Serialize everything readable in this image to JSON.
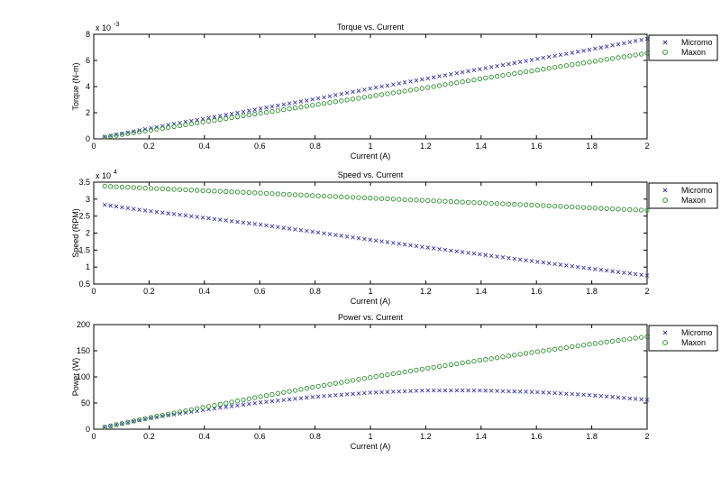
{
  "colors": {
    "micromo": "#3a3aaa",
    "maxon": "#2f8f2f",
    "axes": "#000000",
    "background": "#ffffff"
  },
  "chart_data": [
    {
      "type": "scatter",
      "title": "Torque vs. Current",
      "xlabel": "Current (A)",
      "ylabel": "Torque (N-m)",
      "xlim": [
        0,
        2
      ],
      "ylim": [
        0,
        8
      ],
      "y_exponent": "-3",
      "x_ticks": [
        0,
        0.2,
        0.4,
        0.6,
        0.8,
        1,
        1.2,
        1.4,
        1.6,
        1.8,
        2
      ],
      "x_tick_labels": [
        "0",
        "0.2",
        "0.4",
        "0.6",
        "0.8",
        "1",
        "1.2",
        "1.4",
        "1.6",
        "1.8",
        "2"
      ],
      "y_ticks": [
        0,
        2,
        4,
        6,
        8
      ],
      "y_tick_labels": [
        "0",
        "2",
        "4",
        "6",
        "8"
      ],
      "grid": false,
      "legend_position": "outside-right",
      "series": [
        {
          "name": "Micromo",
          "marker": "x",
          "x": [
            0.04,
            0.2,
            0.4,
            0.6,
            0.8,
            1.0,
            1.2,
            1.4,
            1.6,
            1.8,
            2.0
          ],
          "y": [
            0.15,
            0.8,
            1.55,
            2.3,
            3.05,
            3.85,
            4.6,
            5.35,
            6.1,
            6.85,
            7.65
          ]
        },
        {
          "name": "Maxon",
          "marker": "o",
          "x": [
            0.04,
            0.2,
            0.4,
            0.6,
            0.8,
            1.0,
            1.2,
            1.4,
            1.6,
            1.8,
            2.0
          ],
          "y": [
            0.13,
            0.65,
            1.3,
            1.95,
            2.6,
            3.25,
            3.9,
            4.6,
            5.25,
            5.9,
            6.55
          ]
        }
      ]
    },
    {
      "type": "scatter",
      "title": "Speed vs. Current",
      "xlabel": "Current (A)",
      "ylabel": "Speed (RPM)",
      "xlim": [
        0,
        2
      ],
      "ylim": [
        0.5,
        3.5
      ],
      "y_exponent": "4",
      "x_ticks": [
        0,
        0.2,
        0.4,
        0.6,
        0.8,
        1,
        1.2,
        1.4,
        1.6,
        1.8,
        2
      ],
      "x_tick_labels": [
        "0",
        "0.2",
        "0.4",
        "0.6",
        "0.8",
        "1",
        "1.2",
        "1.4",
        "1.6",
        "1.8",
        "2"
      ],
      "y_ticks": [
        0.5,
        1,
        1.5,
        2,
        2.5,
        3,
        3.5
      ],
      "y_tick_labels": [
        "0.5",
        "1",
        "1.5",
        "2",
        "2.5",
        "3",
        "3.5"
      ],
      "grid": false,
      "legend_position": "outside-right",
      "series": [
        {
          "name": "Micromo",
          "marker": "x",
          "x": [
            0.04,
            0.2,
            0.4,
            0.6,
            0.8,
            1.0,
            1.2,
            1.4,
            1.6,
            1.8,
            2.0
          ],
          "y": [
            2.83,
            2.65,
            2.45,
            2.25,
            2.03,
            1.8,
            1.58,
            1.37,
            1.16,
            0.95,
            0.75
          ]
        },
        {
          "name": "Maxon",
          "marker": "o",
          "x": [
            0.04,
            0.2,
            0.4,
            0.6,
            0.8,
            1.0,
            1.2,
            1.4,
            1.6,
            1.8,
            2.0
          ],
          "y": [
            3.38,
            3.32,
            3.25,
            3.18,
            3.1,
            3.03,
            2.96,
            2.89,
            2.82,
            2.74,
            2.67
          ]
        }
      ]
    },
    {
      "type": "scatter",
      "title": "Power vs. Current",
      "xlabel": "Current (A)",
      "ylabel": "Power (W)",
      "xlim": [
        0,
        2
      ],
      "ylim": [
        0,
        200
      ],
      "y_exponent": "",
      "x_ticks": [
        0,
        0.2,
        0.4,
        0.6,
        0.8,
        1,
        1.2,
        1.4,
        1.6,
        1.8,
        2
      ],
      "x_tick_labels": [
        "0",
        "0.2",
        "0.4",
        "0.6",
        "0.8",
        "1",
        "1.2",
        "1.4",
        "1.6",
        "1.8",
        "2"
      ],
      "y_ticks": [
        0,
        50,
        100,
        150,
        200
      ],
      "y_tick_labels": [
        "0",
        "50",
        "100",
        "150",
        "200"
      ],
      "grid": false,
      "legend_position": "outside-right",
      "series": [
        {
          "name": "Micromo",
          "marker": "x",
          "x": [
            0.04,
            0.2,
            0.4,
            0.6,
            0.8,
            1.0,
            1.2,
            1.4,
            1.6,
            1.8,
            2.0
          ],
          "y": [
            4,
            21,
            37,
            51,
            62,
            70,
            74,
            74,
            71,
            65,
            56
          ]
        },
        {
          "name": "Maxon",
          "marker": "o",
          "x": [
            0.04,
            0.2,
            0.4,
            0.6,
            0.8,
            1.0,
            1.2,
            1.4,
            1.6,
            1.8,
            2.0
          ],
          "y": [
            4,
            22,
            42,
            62,
            81,
            99,
            116,
            132,
            148,
            163,
            177
          ]
        }
      ]
    }
  ]
}
